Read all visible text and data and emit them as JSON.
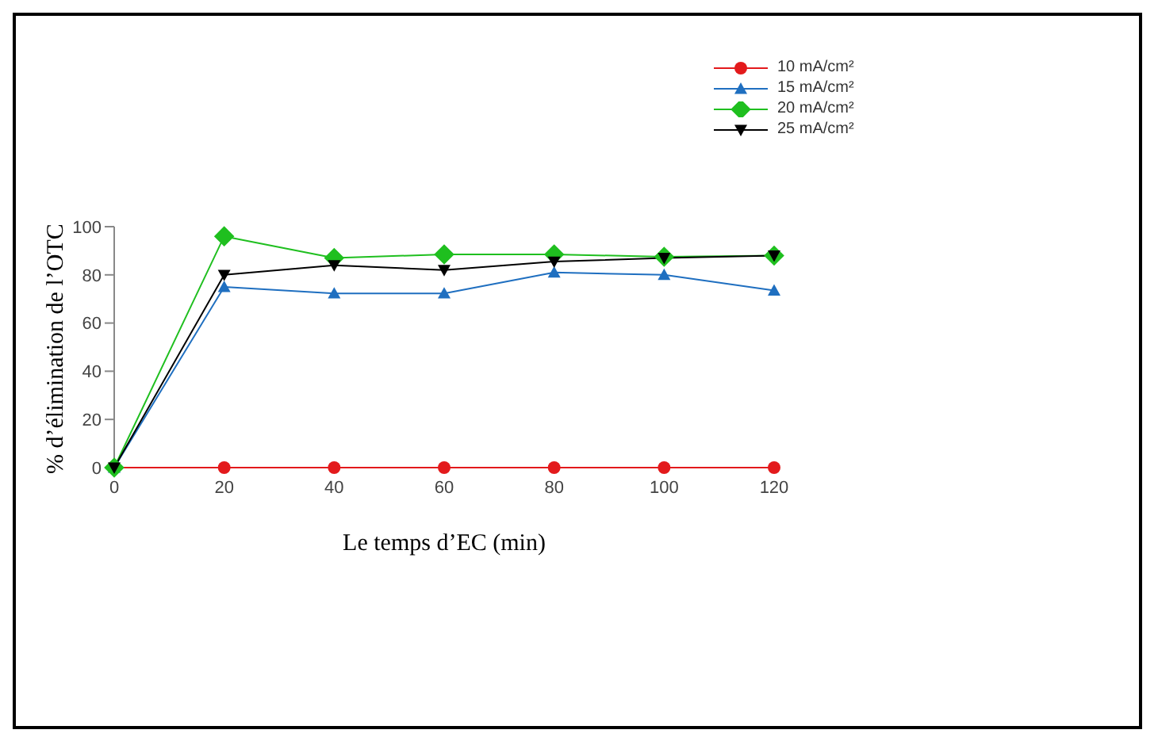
{
  "chart_data": {
    "type": "line",
    "xlabel": "Le temps d’EC (min)",
    "ylabel": "% d’élimination de l’OTC",
    "x": [
      0,
      20,
      40,
      60,
      80,
      100,
      120
    ],
    "series": [
      {
        "name": "10 mA/cm²",
        "color": "#e31a1c",
        "marker": "circle",
        "values": [
          0,
          0,
          0,
          0,
          0,
          0,
          0
        ]
      },
      {
        "name": "15 mA/cm²",
        "color": "#1f6fc0",
        "marker": "triangle",
        "values": [
          0,
          75,
          72.3,
          72.3,
          81,
          80,
          73.5
        ]
      },
      {
        "name": "20 mA/cm²",
        "color": "#1fbf1f",
        "marker": "diamond",
        "values": [
          0,
          96,
          87,
          88.5,
          88.5,
          87.5,
          88
        ]
      },
      {
        "name": "25 mA/cm²",
        "color": "#000000",
        "marker": "triangle-down",
        "values": [
          0,
          80,
          84,
          82,
          85.5,
          87,
          88
        ]
      }
    ],
    "xlim": [
      0,
      120
    ],
    "xticks": [
      0,
      20,
      40,
      60,
      80,
      100,
      120
    ],
    "ylim": [
      0,
      100
    ],
    "yticks": [
      0,
      20,
      40,
      60,
      80,
      100
    ],
    "grid": false,
    "legend": "top right",
    "line_style": "solid"
  }
}
